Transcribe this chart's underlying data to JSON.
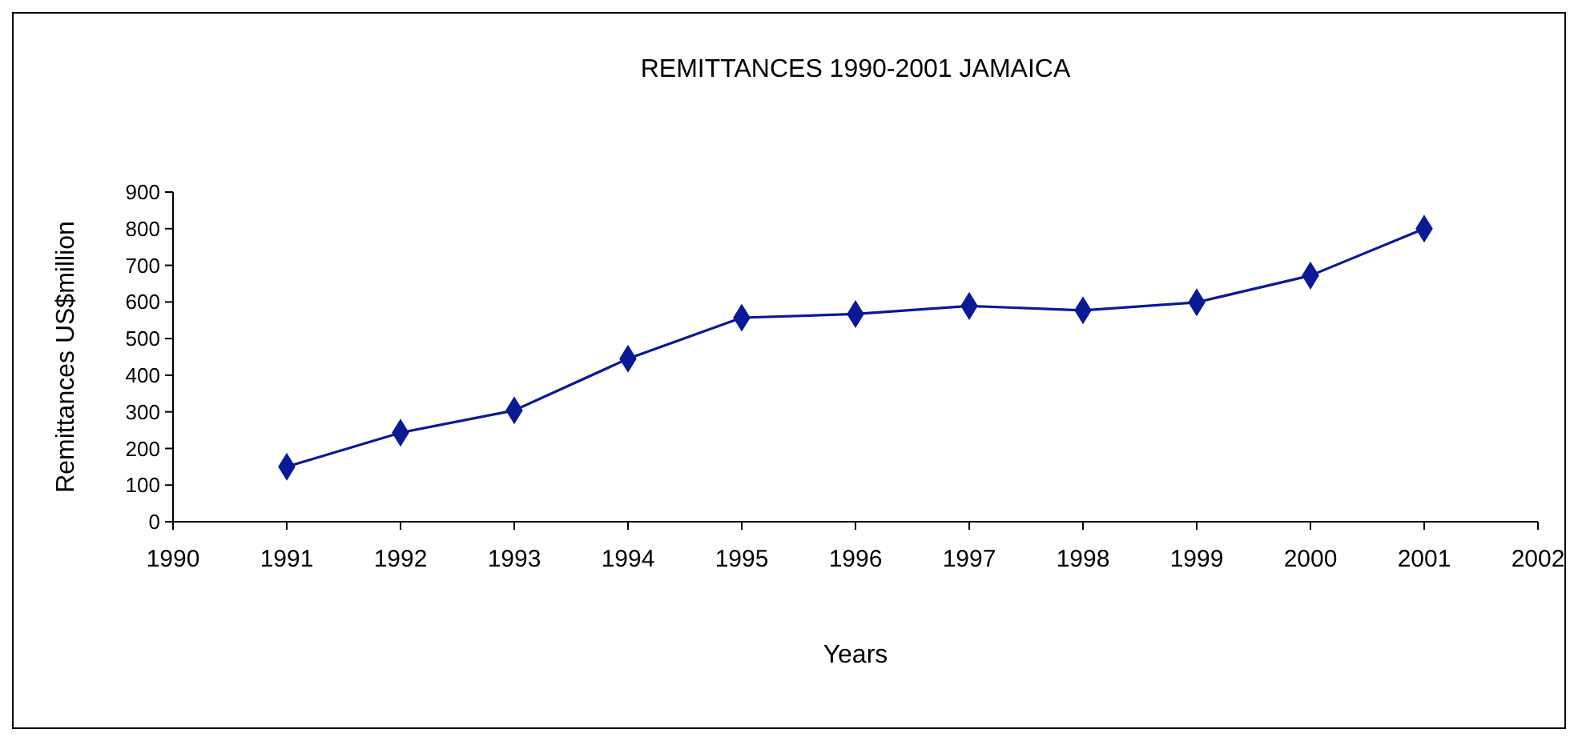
{
  "chart_data": {
    "type": "line",
    "title": "REMITTANCES 1990-2001 JAMAICA",
    "xlabel": "Years",
    "ylabel": "Remittances US$million",
    "x": [
      1991,
      1992,
      1993,
      1994,
      1995,
      1996,
      1997,
      1998,
      1999,
      2000,
      2001
    ],
    "series": [
      {
        "color": "#0a1a96",
        "values": [
          150,
          243,
          304,
          445,
          557,
          567,
          589,
          577,
          599,
          672,
          800
        ]
      }
    ],
    "xlim": [
      1990,
      2002
    ],
    "xticks": [
      1990,
      1991,
      1992,
      1993,
      1994,
      1995,
      1996,
      1997,
      1998,
      1999,
      2000,
      2001,
      2002
    ],
    "ylim": [
      0,
      900
    ],
    "yticks": [
      0,
      100,
      200,
      300,
      400,
      500,
      600,
      700,
      800,
      900
    ],
    "marker": "diamond",
    "line_style": "solid"
  }
}
